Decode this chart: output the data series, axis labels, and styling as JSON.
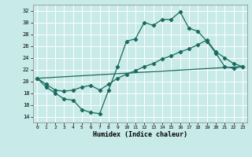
{
  "xlabel": "Humidex (Indice chaleur)",
  "background_color": "#c8eae8",
  "line_color": "#1a6b5e",
  "grid_color": "#ffffff",
  "xlim": [
    -0.5,
    23.5
  ],
  "ylim": [
    13,
    33
  ],
  "yticks": [
    14,
    16,
    18,
    20,
    22,
    24,
    26,
    28,
    30,
    32
  ],
  "xticks": [
    0,
    1,
    2,
    3,
    4,
    5,
    6,
    7,
    8,
    9,
    10,
    11,
    12,
    13,
    14,
    15,
    16,
    17,
    18,
    19,
    20,
    21,
    22,
    23
  ],
  "line1_x": [
    0,
    1,
    2,
    3,
    4,
    5,
    6,
    7,
    8,
    9,
    10,
    11,
    12,
    13,
    14,
    15,
    16,
    17,
    18,
    19,
    20,
    21,
    22,
    23
  ],
  "line1_y": [
    20.5,
    19.0,
    18.0,
    17.0,
    16.8,
    15.2,
    14.7,
    14.5,
    18.5,
    22.5,
    26.8,
    27.2,
    30.0,
    29.5,
    30.5,
    30.5,
    31.8,
    29.0,
    28.5,
    26.8,
    24.8,
    22.5,
    22.2,
    22.5
  ],
  "line2_x": [
    0,
    1,
    2,
    3,
    4,
    5,
    6,
    7,
    8,
    9,
    10,
    11,
    12,
    13,
    14,
    15,
    16,
    17,
    18,
    19,
    20,
    21,
    22,
    23
  ],
  "line2_y": [
    20.5,
    19.5,
    18.5,
    18.3,
    18.5,
    19.0,
    19.3,
    18.5,
    19.5,
    20.5,
    21.2,
    21.8,
    22.5,
    23.0,
    23.8,
    24.3,
    25.0,
    25.5,
    26.2,
    27.0,
    25.0,
    24.0,
    23.0,
    22.5
  ],
  "line3_x": [
    0,
    23
  ],
  "line3_y": [
    20.5,
    22.5
  ]
}
